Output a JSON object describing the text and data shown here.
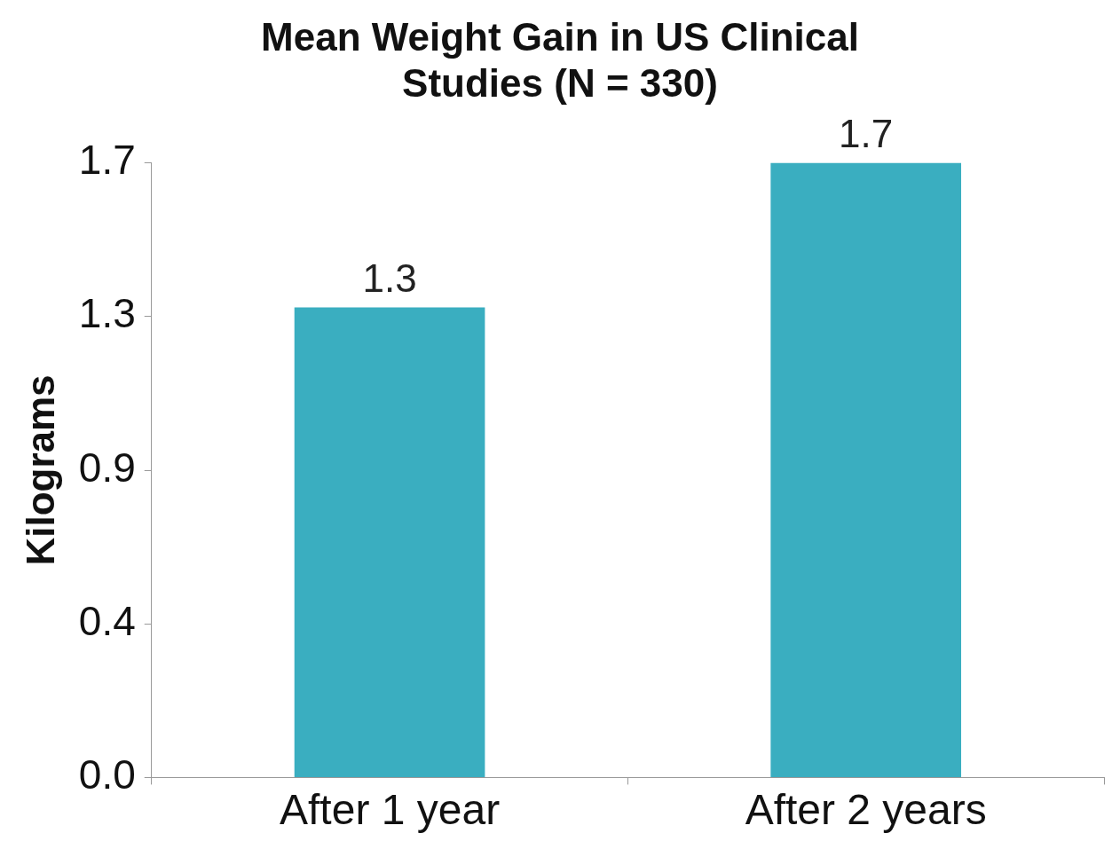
{
  "chart_data": {
    "type": "bar",
    "title": "Mean Weight Gain in US Clinical Studies (N = 330)",
    "ylabel": "Kilograms",
    "categories": [
      "After 1 year",
      "After 2 years"
    ],
    "values": [
      1.3,
      1.7
    ],
    "color": "#3aaec0",
    "ylim": [
      0,
      1.7
    ],
    "yticks": [
      {
        "value": 0,
        "label": "0.0"
      },
      {
        "value": 0.425,
        "label": "0.4"
      },
      {
        "value": 0.85,
        "label": "0.9"
      },
      {
        "value": 1.275,
        "label": "1.3"
      },
      {
        "value": 1.7,
        "label": "1.7"
      }
    ],
    "data_labels": true,
    "grid": false,
    "legend": false
  }
}
